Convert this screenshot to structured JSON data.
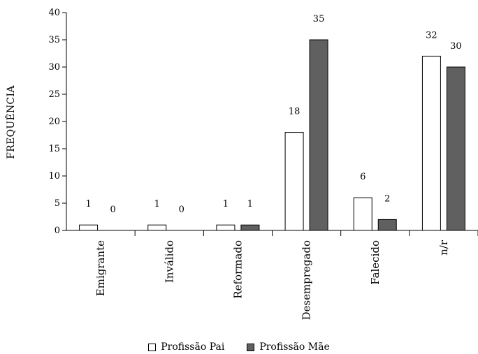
{
  "chart_data": {
    "type": "bar",
    "ylabel": "FREQUÊNCIA",
    "xlabel": "",
    "ylim": [
      0,
      40
    ],
    "yticks": [
      "0",
      "5",
      "10",
      "15",
      "20",
      "25",
      "30",
      "35",
      "40"
    ],
    "categories": [
      "Emigrante",
      "Inválido",
      "Reformado",
      "Desempregado",
      "Falecido",
      "n/r"
    ],
    "series": [
      {
        "name": "Profissão Pai",
        "values": [
          1,
          1,
          1,
          18,
          6,
          32
        ],
        "color": "#ffffff"
      },
      {
        "name": "Profissão Mãe",
        "values": [
          0,
          0,
          1,
          35,
          2,
          30
        ],
        "color": "#606060"
      }
    ],
    "legend_position": "bottom-center",
    "grid": false
  }
}
